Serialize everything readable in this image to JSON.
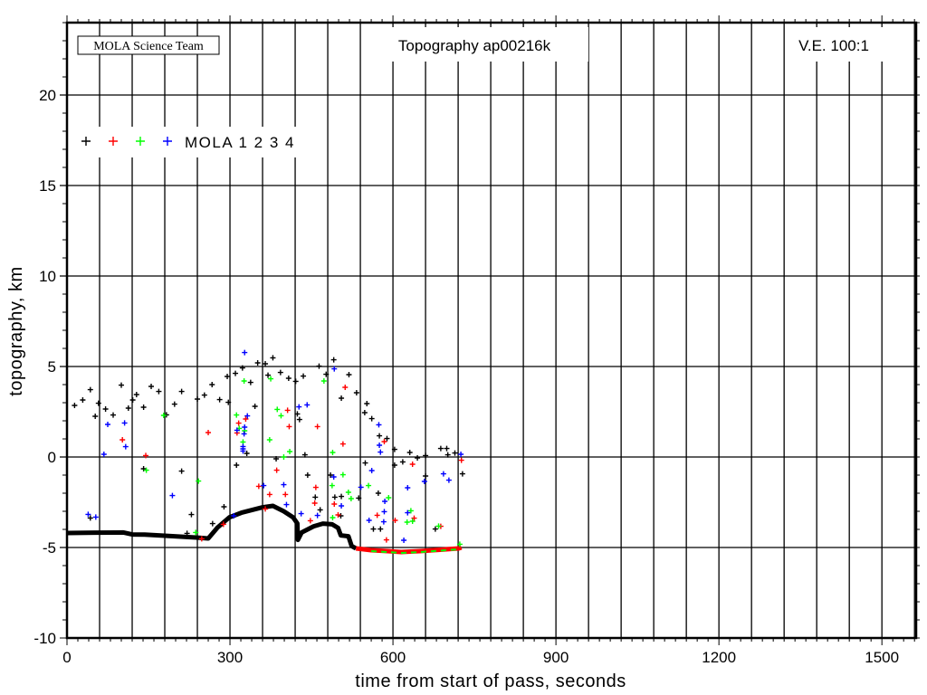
{
  "chart_data": {
    "type": "scatter",
    "title": "Topography ap00216k",
    "credit": "MOLA Science Team",
    "annotation": "V.E. 100:1",
    "xlabel": "time from start of pass, seconds",
    "ylabel": "topography, km",
    "xlim": [
      0,
      1563
    ],
    "ylim": [
      -10,
      24
    ],
    "x_ticks": [
      0,
      300,
      600,
      900,
      1200,
      1500
    ],
    "y_ticks": [
      -10,
      -5,
      0,
      5,
      10,
      15,
      20
    ],
    "grid": true,
    "legend": {
      "placement": "top-left",
      "label": "MOLA 1 2 3 4",
      "colors": [
        "#000000",
        "#ff0000",
        "#00ff00",
        "#0000ff"
      ]
    },
    "ground_profile": {
      "color": "#000000",
      "x": [
        0,
        50,
        104,
        120,
        143,
        180,
        238,
        260,
        277,
        299,
        321,
        360,
        379,
        399,
        416,
        424,
        425,
        432,
        454,
        471,
        488,
        499,
        504,
        518,
        524,
        532
      ],
      "y": [
        -4.2,
        -4.18,
        -4.17,
        -4.28,
        -4.29,
        -4.35,
        -4.45,
        -4.5,
        -3.9,
        -3.33,
        -3.08,
        -2.78,
        -2.7,
        -3.0,
        -3.33,
        -3.67,
        -4.58,
        -4.17,
        -3.83,
        -3.68,
        -3.72,
        -3.92,
        -4.33,
        -4.38,
        -4.92,
        -5.05
      ]
    },
    "ground_tail": {
      "colors": [
        "#ff0000",
        "#00ff00"
      ],
      "x": [
        532,
        560,
        590,
        615,
        650,
        690,
        721,
        726
      ],
      "y": [
        -5.05,
        -5.15,
        -5.2,
        -5.25,
        -5.2,
        -5.12,
        -5.05,
        -5.0
      ]
    },
    "series": [
      {
        "name": "MOLA 1",
        "color": "#000000",
        "x": [
          14,
          29,
          43,
          52,
          58,
          71,
          85,
          100,
          113,
          121,
          128,
          141,
          155,
          169,
          183,
          198,
          211,
          240,
          253,
          267,
          281,
          295,
          297,
          310,
          323,
          338,
          346,
          351,
          365,
          370,
          379,
          393,
          408,
          421,
          424,
          428,
          435,
          464,
          477,
          491,
          505,
          519,
          533,
          548,
          552,
          561,
          575,
          589,
          603,
          631,
          645,
          660,
          688,
          699,
          701,
          714,
          728,
          141,
          211,
          229,
          268,
          289,
          312,
          331,
          385,
          438,
          443,
          457,
          466,
          485,
          493,
          505,
          504,
          537,
          549,
          573,
          564,
          577,
          603,
          618,
          660,
          678,
          43,
          221
        ],
        "y": [
          2.85,
          3.15,
          3.72,
          2.25,
          2.97,
          2.65,
          2.32,
          3.97,
          2.7,
          3.15,
          3.45,
          2.75,
          3.9,
          3.62,
          2.33,
          2.92,
          3.62,
          3.2,
          3.42,
          4.0,
          3.17,
          4.45,
          3.02,
          4.62,
          4.92,
          4.12,
          2.8,
          5.2,
          5.15,
          4.52,
          5.48,
          4.67,
          4.35,
          4.18,
          2.38,
          2.07,
          4.47,
          5.02,
          4.57,
          5.37,
          3.25,
          4.55,
          3.55,
          2.45,
          2.95,
          2.12,
          1.17,
          1.02,
          0.42,
          0.25,
          -0.05,
          0.08,
          0.47,
          0.47,
          0.12,
          0.22,
          -0.93,
          -0.65,
          -0.78,
          -3.18,
          -3.68,
          -2.75,
          -0.45,
          0.2,
          -0.1,
          0.12,
          -1.0,
          -2.22,
          -2.92,
          -1.0,
          -2.22,
          -2.18,
          -3.25,
          -2.27,
          -0.33,
          -2.0,
          -3.98,
          -3.98,
          -0.45,
          -0.27,
          -1.05,
          -3.98,
          -3.37,
          -4.22
        ]
      },
      {
        "name": "MOLA 2",
        "color": "#ff0000",
        "x": [
          102,
          145,
          260,
          313,
          316,
          329,
          353,
          373,
          386,
          402,
          406,
          409,
          448,
          458,
          456,
          461,
          492,
          499,
          508,
          512,
          571,
          584,
          588,
          604,
          636,
          639,
          688,
          726,
          248,
          365,
          288
        ],
        "y": [
          0.95,
          0.08,
          1.35,
          1.33,
          1.87,
          2.1,
          -1.62,
          -2.07,
          -0.73,
          -2.07,
          2.58,
          1.68,
          -3.52,
          -1.68,
          -2.55,
          1.68,
          -2.6,
          -3.2,
          0.72,
          3.85,
          -3.22,
          0.85,
          -4.58,
          -3.5,
          -0.4,
          -3.38,
          -3.83,
          -0.18,
          -4.52,
          -2.87,
          -3.72
        ]
      },
      {
        "name": "MOLA 3",
        "color": "#00ff00",
        "x": [
          178,
          146,
          242,
          237,
          312,
          317,
          326,
          324,
          327,
          375,
          373,
          387,
          394,
          410,
          399,
          473,
          489,
          488,
          489,
          508,
          518,
          523,
          555,
          592,
          626,
          633,
          636,
          684,
          723
        ],
        "y": [
          2.3,
          -0.73,
          -1.33,
          -4.17,
          2.32,
          1.58,
          4.2,
          0.83,
          1.45,
          4.32,
          0.95,
          2.63,
          2.28,
          0.3,
          0.0,
          4.2,
          0.25,
          -1.58,
          -3.35,
          -0.98,
          -1.95,
          -2.3,
          -1.58,
          -2.25,
          -3.6,
          -2.97,
          -3.55,
          -3.82,
          -4.82
        ]
      },
      {
        "name": "MOLA 4",
        "color": "#0000ff",
        "x": [
          39,
          53,
          68,
          75,
          106,
          108,
          194,
          307,
          313,
          324,
          324,
          324,
          327,
          326,
          327,
          332,
          362,
          399,
          404,
          427,
          442,
          431,
          461,
          491,
          492,
          505,
          541,
          556,
          561,
          574,
          575,
          577,
          583,
          584,
          585,
          620,
          627,
          627,
          658,
          693,
          703,
          725
        ],
        "y": [
          -3.17,
          -3.32,
          0.15,
          1.8,
          1.88,
          0.57,
          -2.13,
          -3.25,
          1.48,
          0.58,
          0.33,
          0.45,
          1.65,
          1.28,
          5.77,
          2.27,
          -1.58,
          -1.53,
          -2.63,
          2.77,
          2.88,
          -3.13,
          -3.23,
          -1.1,
          4.87,
          -2.7,
          -1.67,
          -3.5,
          -0.75,
          1.78,
          0.65,
          0.27,
          -3.58,
          -3.02,
          -2.45,
          -4.6,
          -1.7,
          -3.08,
          -1.35,
          -0.93,
          -1.28,
          0.15
        ]
      }
    ]
  }
}
